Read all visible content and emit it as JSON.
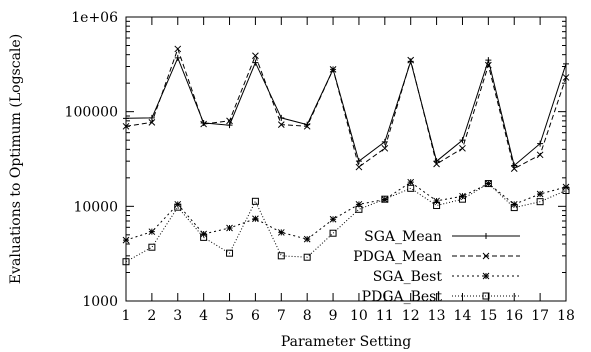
{
  "chart_data": {
    "type": "line",
    "title": "",
    "xlabel": "Parameter Setting",
    "ylabel": "Evaluations to Optimum (Logscale)",
    "yscale": "log",
    "ylim": [
      1000,
      1000000
    ],
    "xlim": [
      1,
      18
    ],
    "x": [
      1,
      2,
      3,
      4,
      5,
      6,
      7,
      8,
      9,
      10,
      11,
      12,
      13,
      14,
      15,
      16,
      17,
      18
    ],
    "x_ticks": [
      "1",
      "2",
      "3",
      "4",
      "5",
      "6",
      "7",
      "8",
      "9",
      "10",
      "11",
      "12",
      "13",
      "14",
      "15",
      "16",
      "17",
      "18"
    ],
    "y_ticks": [
      {
        "value": 1000,
        "label": "1000"
      },
      {
        "value": 10000,
        "label": "10000"
      },
      {
        "value": 100000,
        "label": "100000"
      },
      {
        "value": 1000000,
        "label": "1e+06"
      }
    ],
    "grid": false,
    "legend_position": "bottom-right",
    "series": [
      {
        "name": "SGA_Mean",
        "style": "solid",
        "marker": "plus",
        "color": "#000000",
        "values": [
          85000,
          86000,
          370000,
          76000,
          72000,
          330000,
          86000,
          73000,
          280000,
          30000,
          48000,
          340000,
          30000,
          50000,
          350000,
          27000,
          46000,
          320000
        ]
      },
      {
        "name": "PDGA_Mean",
        "style": "dashed",
        "marker": "cross",
        "color": "#000000",
        "values": [
          70000,
          77000,
          460000,
          74000,
          80000,
          390000,
          73000,
          70000,
          280000,
          26000,
          41000,
          350000,
          28000,
          41000,
          310000,
          25000,
          35000,
          230000
        ]
      },
      {
        "name": "SGA_Best",
        "style": "dotted",
        "marker": "star",
        "color": "#000000",
        "values": [
          4400,
          5400,
          10500,
          5100,
          5900,
          7400,
          5300,
          4500,
          7300,
          10500,
          11800,
          18000,
          11400,
          12800,
          17400,
          10500,
          13500,
          16000
        ]
      },
      {
        "name": "PDGA_Best",
        "style": "dotted-fine",
        "marker": "square",
        "color": "#000000",
        "values": [
          2600,
          3700,
          9800,
          4700,
          3200,
          11300,
          3000,
          2900,
          5200,
          9300,
          11900,
          15500,
          10200,
          11900,
          17400,
          9700,
          11200,
          14700
        ]
      }
    ]
  }
}
